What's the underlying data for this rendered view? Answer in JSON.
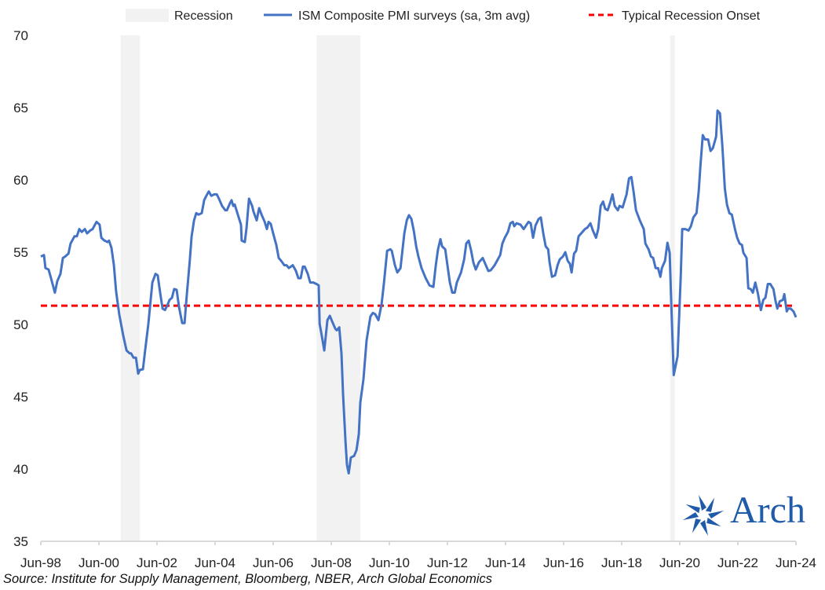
{
  "chart_data": {
    "type": "line",
    "title": "",
    "xlabel": "",
    "ylabel": "",
    "ylim": [
      35,
      70
    ],
    "yticks": [
      35,
      40,
      45,
      50,
      55,
      60,
      65,
      70
    ],
    "x_unit": "months since Jun-98",
    "xlim": [
      0,
      312
    ],
    "xtick_labels": [
      "Jun-98",
      "Jun-00",
      "Jun-02",
      "Jun-04",
      "Jun-06",
      "Jun-08",
      "Jun-10",
      "Jun-12",
      "Jun-14",
      "Jun-16",
      "Jun-18",
      "Jun-20",
      "Jun-22",
      "Jun-24"
    ],
    "xtick_months": [
      0,
      24,
      48,
      72,
      96,
      120,
      144,
      168,
      192,
      216,
      240,
      264,
      288,
      312
    ],
    "grid": false,
    "legend_position": "top",
    "legend": [
      "Recession",
      "ISM Composite PMI surveys (sa, 3m avg)",
      "Typical Recession Onset"
    ],
    "recessions": [
      [
        33,
        41
      ],
      [
        114,
        132
      ],
      [
        260,
        262
      ]
    ],
    "threshold": {
      "name": "Typical Recession Onset",
      "value": 51.3,
      "color": "#ff0000"
    },
    "series": [
      {
        "name": "ISM Composite PMI surveys (sa, 3m avg)",
        "color": "#4472c4",
        "points": [
          [
            0,
            54.7
          ],
          [
            1.3,
            54.8
          ],
          [
            1.9,
            53.9
          ],
          [
            3.2,
            53.8
          ],
          [
            4.2,
            53.2
          ],
          [
            5.8,
            52.2
          ],
          [
            6.8,
            53.0
          ],
          [
            8.1,
            53.5
          ],
          [
            9.1,
            54.6
          ],
          [
            10.1,
            54.7
          ],
          [
            11.4,
            54.9
          ],
          [
            12.3,
            55.6
          ],
          [
            13.9,
            56.1
          ],
          [
            14.9,
            56.1
          ],
          [
            15.9,
            56.6
          ],
          [
            16.9,
            56.4
          ],
          [
            18.2,
            56.6
          ],
          [
            19.1,
            56.3
          ],
          [
            20.4,
            56.5
          ],
          [
            21.4,
            56.6
          ],
          [
            23.0,
            57.1
          ],
          [
            24.3,
            56.9
          ],
          [
            25.0,
            56.0
          ],
          [
            26.3,
            55.8
          ],
          [
            27.6,
            55.7
          ],
          [
            28.2,
            55.8
          ],
          [
            29.2,
            55.3
          ],
          [
            30.2,
            54.1
          ],
          [
            31.1,
            52.3
          ],
          [
            32.4,
            50.7
          ],
          [
            34.1,
            49.2
          ],
          [
            35.4,
            48.2
          ],
          [
            36.7,
            48.0
          ],
          [
            37.3,
            48.0
          ],
          [
            38.3,
            47.7
          ],
          [
            39.3,
            47.7
          ],
          [
            40.2,
            46.6
          ],
          [
            40.9,
            46.85
          ],
          [
            42.2,
            46.9
          ],
          [
            43.1,
            48.2
          ],
          [
            44.4,
            50.0
          ],
          [
            46.1,
            52.9
          ],
          [
            47.4,
            53.5
          ],
          [
            48.3,
            53.4
          ],
          [
            49.3,
            52.2
          ],
          [
            50.3,
            51.1
          ],
          [
            51.3,
            51.0
          ],
          [
            52.2,
            51.3
          ],
          [
            53.2,
            51.7
          ],
          [
            54.2,
            51.85
          ],
          [
            55.1,
            52.45
          ],
          [
            56.1,
            52.4
          ],
          [
            57.1,
            51.2
          ],
          [
            58.4,
            50.1
          ],
          [
            59.4,
            50.1
          ],
          [
            60.3,
            52.0
          ],
          [
            61.6,
            54.5
          ],
          [
            62.3,
            56.1
          ],
          [
            63.3,
            57.2
          ],
          [
            64.2,
            57.7
          ],
          [
            65.2,
            57.6
          ],
          [
            66.5,
            57.7
          ],
          [
            67.5,
            58.6
          ],
          [
            68.4,
            58.9
          ],
          [
            69.4,
            59.2
          ],
          [
            70.4,
            58.9
          ],
          [
            71.7,
            59.0
          ],
          [
            72.7,
            59.0
          ],
          [
            73.6,
            58.7
          ],
          [
            74.9,
            58.2
          ],
          [
            76.2,
            57.9
          ],
          [
            76.9,
            57.9
          ],
          [
            78.2,
            58.4
          ],
          [
            78.8,
            58.6
          ],
          [
            79.5,
            58.2
          ],
          [
            80.1,
            58.3
          ],
          [
            81.4,
            57.6
          ],
          [
            82.7,
            56.9
          ],
          [
            83.0,
            55.8
          ],
          [
            84.3,
            55.7
          ],
          [
            85.0,
            56.7
          ],
          [
            86.0,
            58.7
          ],
          [
            87.3,
            58.2
          ],
          [
            87.9,
            57.8
          ],
          [
            89.2,
            57.2
          ],
          [
            90.2,
            58.05
          ],
          [
            91.2,
            57.6
          ],
          [
            92.5,
            57.1
          ],
          [
            93.4,
            56.6
          ],
          [
            94.1,
            57.1
          ],
          [
            95.0,
            56.96
          ],
          [
            96.0,
            56.3
          ],
          [
            97.3,
            55.5
          ],
          [
            98.3,
            54.6
          ],
          [
            99.3,
            54.4
          ],
          [
            100.6,
            54.1
          ],
          [
            101.5,
            54.1
          ],
          [
            102.5,
            53.9
          ],
          [
            104.1,
            54.1
          ],
          [
            105.4,
            53.7
          ],
          [
            106.4,
            53.2
          ],
          [
            107.4,
            53.2
          ],
          [
            108.3,
            54.0
          ],
          [
            109.0,
            54.0
          ],
          [
            110.3,
            53.5
          ],
          [
            111.3,
            52.9
          ],
          [
            112.6,
            52.9
          ],
          [
            113.9,
            52.8
          ],
          [
            114.8,
            52.7
          ],
          [
            115.2,
            50.05
          ],
          [
            116.1,
            49.2
          ],
          [
            117.1,
            48.2
          ],
          [
            118.4,
            50.3
          ],
          [
            119.4,
            50.6
          ],
          [
            120.4,
            50.2
          ],
          [
            121.7,
            49.7
          ],
          [
            122.3,
            49.6
          ],
          [
            123.3,
            49.8
          ],
          [
            124.2,
            48.0
          ],
          [
            124.9,
            45.1
          ],
          [
            125.9,
            41.85
          ],
          [
            126.5,
            40.3
          ],
          [
            127.2,
            39.7
          ],
          [
            128.1,
            40.8
          ],
          [
            129.4,
            40.9
          ],
          [
            130.4,
            41.3
          ],
          [
            131.4,
            42.4
          ],
          [
            132.0,
            44.6
          ],
          [
            133.3,
            46.2
          ],
          [
            134.6,
            48.9
          ],
          [
            136.2,
            50.55
          ],
          [
            137.2,
            50.8
          ],
          [
            138.2,
            50.7
          ],
          [
            139.5,
            50.3
          ],
          [
            140.8,
            51.4
          ],
          [
            141.8,
            52.9
          ],
          [
            143.1,
            55.1
          ],
          [
            144.4,
            55.2
          ],
          [
            145.0,
            55.1
          ],
          [
            146.3,
            54.1
          ],
          [
            147.3,
            53.6
          ],
          [
            148.6,
            53.9
          ],
          [
            150.2,
            56.3
          ],
          [
            151.2,
            57.2
          ],
          [
            152.1,
            57.56
          ],
          [
            153.1,
            57.3
          ],
          [
            154.1,
            56.5
          ],
          [
            155.1,
            55.4
          ],
          [
            156.0,
            54.7
          ],
          [
            157.3,
            53.9
          ],
          [
            159.0,
            53.2
          ],
          [
            160.6,
            52.7
          ],
          [
            162.2,
            52.6
          ],
          [
            163.2,
            54.1
          ],
          [
            164.1,
            55.2
          ],
          [
            165.1,
            55.9
          ],
          [
            165.8,
            55.4
          ],
          [
            167.1,
            55.2
          ],
          [
            168.0,
            54.1
          ],
          [
            169.0,
            52.9
          ],
          [
            170.0,
            52.2
          ],
          [
            171.0,
            52.2
          ],
          [
            171.9,
            52.9
          ],
          [
            173.6,
            53.6
          ],
          [
            174.9,
            54.5
          ],
          [
            175.8,
            55.6
          ],
          [
            176.8,
            55.8
          ],
          [
            177.8,
            55.1
          ],
          [
            178.7,
            54.3
          ],
          [
            179.7,
            53.8
          ],
          [
            181.0,
            54.3
          ],
          [
            182.6,
            54.6
          ],
          [
            183.6,
            54.2
          ],
          [
            184.9,
            53.7
          ],
          [
            185.9,
            53.75
          ],
          [
            187.5,
            54.1
          ],
          [
            189.8,
            54.8
          ],
          [
            190.7,
            55.6
          ],
          [
            191.7,
            56.0
          ],
          [
            193.0,
            56.4
          ],
          [
            194.0,
            57.0
          ],
          [
            195.0,
            57.1
          ],
          [
            195.6,
            56.8
          ],
          [
            196.6,
            57.0
          ],
          [
            198.2,
            56.9
          ],
          [
            199.5,
            56.6
          ],
          [
            200.5,
            56.85
          ],
          [
            201.5,
            57.1
          ],
          [
            202.4,
            57.0
          ],
          [
            203.4,
            56.0
          ],
          [
            204.4,
            56.85
          ],
          [
            205.7,
            57.3
          ],
          [
            206.6,
            57.4
          ],
          [
            207.6,
            56.3
          ],
          [
            208.6,
            55.4
          ],
          [
            209.6,
            55.2
          ],
          [
            210.2,
            54.3
          ],
          [
            211.2,
            53.3
          ],
          [
            212.5,
            53.4
          ],
          [
            213.5,
            54.1
          ],
          [
            214.4,
            54.5
          ],
          [
            215.7,
            54.7
          ],
          [
            216.7,
            55.0
          ],
          [
            217.7,
            54.4
          ],
          [
            218.6,
            54.2
          ],
          [
            219.3,
            53.6
          ],
          [
            220.3,
            54.9
          ],
          [
            221.2,
            55.1
          ],
          [
            222.2,
            56.1
          ],
          [
            223.8,
            56.4
          ],
          [
            224.8,
            56.6
          ],
          [
            225.8,
            56.7
          ],
          [
            227.1,
            57.0
          ],
          [
            228.1,
            56.5
          ],
          [
            229.4,
            56.0
          ],
          [
            230.3,
            56.6
          ],
          [
            231.3,
            58.2
          ],
          [
            232.3,
            58.5
          ],
          [
            233.2,
            58.0
          ],
          [
            234.2,
            57.9
          ],
          [
            235.2,
            58.4
          ],
          [
            236.2,
            59.0
          ],
          [
            237.1,
            58.2
          ],
          [
            238.4,
            57.9
          ],
          [
            239.1,
            58.2
          ],
          [
            240.4,
            58.1
          ],
          [
            242.0,
            59.0
          ],
          [
            243.0,
            60.1
          ],
          [
            244.0,
            60.2
          ],
          [
            244.9,
            59.2
          ],
          [
            245.9,
            57.9
          ],
          [
            247.5,
            57.2
          ],
          [
            249.1,
            56.6
          ],
          [
            249.8,
            55.6
          ],
          [
            251.1,
            55.2
          ],
          [
            252.1,
            54.7
          ],
          [
            253.0,
            54.6
          ],
          [
            254.0,
            53.9
          ],
          [
            255.0,
            53.9
          ],
          [
            256.0,
            53.3
          ],
          [
            256.6,
            53.9
          ],
          [
            257.9,
            54.4
          ],
          [
            258.9,
            55.65
          ],
          [
            259.8,
            54.95
          ],
          [
            260.5,
            51.4
          ],
          [
            261.5,
            46.5
          ],
          [
            263.1,
            47.8
          ],
          [
            264.4,
            53.3
          ],
          [
            265.0,
            56.6
          ],
          [
            266.3,
            56.6
          ],
          [
            267.6,
            56.5
          ],
          [
            268.6,
            56.8
          ],
          [
            269.6,
            57.4
          ],
          [
            270.9,
            57.7
          ],
          [
            271.8,
            59.2
          ],
          [
            272.5,
            60.9
          ],
          [
            273.5,
            63.1
          ],
          [
            274.4,
            62.8
          ],
          [
            275.7,
            62.8
          ],
          [
            276.7,
            62.0
          ],
          [
            277.7,
            62.2
          ],
          [
            279.0,
            63.0
          ],
          [
            279.6,
            64.8
          ],
          [
            280.6,
            64.6
          ],
          [
            281.6,
            62.3
          ],
          [
            282.6,
            59.4
          ],
          [
            283.5,
            58.3
          ],
          [
            284.5,
            57.7
          ],
          [
            285.5,
            57.6
          ],
          [
            286.8,
            56.6
          ],
          [
            287.7,
            56.0
          ],
          [
            288.7,
            55.6
          ],
          [
            289.7,
            55.5
          ],
          [
            290.3,
            54.95
          ],
          [
            291.6,
            54.6
          ],
          [
            292.3,
            52.5
          ],
          [
            293.3,
            52.45
          ],
          [
            294.2,
            52.2
          ],
          [
            295.2,
            52.9
          ],
          [
            296.2,
            52.2
          ],
          [
            297.5,
            51.0
          ],
          [
            298.5,
            51.7
          ],
          [
            299.4,
            51.85
          ],
          [
            300.4,
            52.8
          ],
          [
            301.4,
            52.8
          ],
          [
            302.7,
            52.45
          ],
          [
            303.6,
            51.6
          ],
          [
            304.3,
            51.1
          ],
          [
            305.3,
            51.6
          ],
          [
            306.6,
            51.7
          ],
          [
            307.2,
            52.1
          ],
          [
            308.2,
            50.9
          ],
          [
            308.8,
            51.1
          ],
          [
            309.8,
            51.1
          ],
          [
            311.0,
            50.9
          ],
          [
            312.0,
            50.5
          ]
        ]
      }
    ],
    "colors": {
      "recession": "#f2f2f2",
      "axis": "#d9d9d9"
    }
  },
  "source": "Source: Institute for Supply Management, Bloomberg, NBER, Arch Global Economics",
  "logo": {
    "text": "Arch",
    "color": "#1f5ba8"
  }
}
